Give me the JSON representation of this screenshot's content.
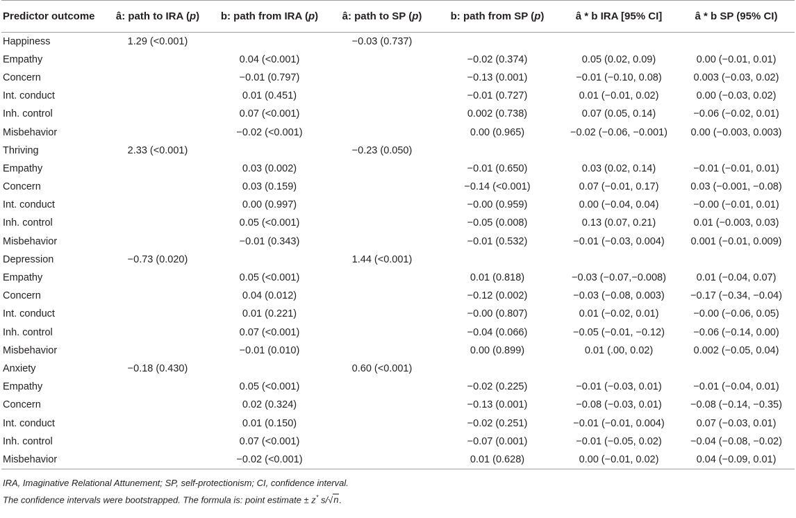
{
  "table": {
    "headers": [
      "Predictor outcome",
      "â: path to IRA (p)",
      "b: path from IRA (p)",
      "â: path to SP (p)",
      "b: path from SP (p)",
      "â * b IRA [95% CI]",
      "â * b SP (95% CI)"
    ],
    "header_parts": [
      {
        "pre": "Predictor outcome",
        "ital": "",
        "post": ""
      },
      {
        "pre": "â: path to IRA (",
        "ital": "p",
        "post": ")"
      },
      {
        "pre": "b: path from IRA (",
        "ital": "p",
        "post": ")"
      },
      {
        "pre": "â: path to SP (",
        "ital": "p",
        "post": ")"
      },
      {
        "pre": "b: path from SP (",
        "ital": "p",
        "post": ")"
      },
      {
        "pre": "â * b IRA [95% CI]",
        "ital": "",
        "post": ""
      },
      {
        "pre": "â * b SP (95% CI)",
        "ital": "",
        "post": ""
      }
    ],
    "rows": [
      [
        "Happiness",
        "1.29 (<0.001)",
        "",
        "−0.03 (0.737)",
        "",
        "",
        ""
      ],
      [
        "Empathy",
        "",
        "0.04 (<0.001)",
        "",
        "−0.02 (0.374)",
        "0.05 (0.02, 0.09)",
        "0.00 (−0.01, 0.01)"
      ],
      [
        "Concern",
        "",
        "−0.01 (0.797)",
        "",
        "−0.13 (0.001)",
        "−0.01 (−0.10, 0.08)",
        "0.003 (−0.03, 0.02)"
      ],
      [
        "Int. conduct",
        "",
        "0.01 (0.451)",
        "",
        "−0.01 (0.727)",
        "0.01 (−0.01, 0.02)",
        "0.00 (−0.03, 0.02)"
      ],
      [
        "Inh. control",
        "",
        "0.07 (<0.001)",
        "",
        "0.002 (0.738)",
        "0.07 (0.05, 0.14)",
        "−0.06 (−0.02, 0.01)"
      ],
      [
        "Misbehavior",
        "",
        "−0.02 (<0.001)",
        "",
        "0.00 (0.965)",
        "−0.02 (−0.06, −0.001)",
        "0.00 (−0.003, 0.003)"
      ],
      [
        "Thriving",
        "2.33 (<0.001)",
        "",
        "−0.23 (0.050)",
        "",
        "",
        ""
      ],
      [
        "Empathy",
        "",
        "0.03 (0.002)",
        "",
        "−0.01 (0.650)",
        "0.03 (0.02, 0.14)",
        "−0.01 (−0.01, 0.01)"
      ],
      [
        "Concern",
        "",
        "0.03 (0.159)",
        "",
        "−0.14 (<0.001)",
        "0.07 (−0.01, 0.17)",
        "0.03 (−0.001, −0.08)"
      ],
      [
        "Int. conduct",
        "",
        "0.00 (0.997)",
        "",
        "−0.00 (0.959)",
        "0.00 (−0.04, 0.04)",
        "−0.00 (−0.01, 0.01)"
      ],
      [
        "Inh. control",
        "",
        "0.05 (<0.001)",
        "",
        "−0.05 (0.008)",
        "0.13 (0.07, 0.21)",
        "0.01 (−0.003, 0.03)"
      ],
      [
        "Misbehavior",
        "",
        "−0.01 (0.343)",
        "",
        "−0.01 (0.532)",
        "−0.01 (−0.03, 0.004)",
        "0.001 (−0.01, 0.009)"
      ],
      [
        "Depression",
        "−0.73 (0.020)",
        "",
        "1.44 (<0.001)",
        "",
        "",
        ""
      ],
      [
        "Empathy",
        "",
        "0.05 (<0.001)",
        "",
        "0.01 (0.818)",
        "−0.03 (−0.07,−0.008)",
        "0.01 (−0.04, 0.07)"
      ],
      [
        "Concern",
        "",
        "0.04 (0.012)",
        "",
        "−0.12 (0.002)",
        "−0.03 (−0.08, 0.003)",
        "−0.17 (−0.34, −0.04)"
      ],
      [
        "Int. conduct",
        "",
        "0.01 (0.221)",
        "",
        "−0.00 (0.807)",
        "0.01 (−0.02, 0.01)",
        "−0.00 (−0.06, 0.05)"
      ],
      [
        "Inh. control",
        "",
        "0.07 (<0.001)",
        "",
        "−0.04 (0.066)",
        "−0.05 (−0.01, −0.12)",
        "−0.06 (−0.14, 0.00)"
      ],
      [
        "Misbehavior",
        "",
        "−0.01 (0.010)",
        "",
        "0.00 (0.899)",
        "0.01 (.00, 0.02)",
        "0.002 (−0.05, 0.04)"
      ],
      [
        "Anxiety",
        "−0.18 (0.430)",
        "",
        "0.60 (<0.001)",
        "",
        "",
        ""
      ],
      [
        "Empathy",
        "",
        "0.05 (<0.001)",
        "",
        "−0.02 (0.225)",
        "−0.01 (−0.03, 0.01)",
        "−0.01 (−0.04, 0.01)"
      ],
      [
        "Concern",
        "",
        "0.02 (0.324)",
        "",
        "−0.13 (0.001)",
        "−0.08 (−0.03, 0.01)",
        "−0.08 (−0.14, −0.35)"
      ],
      [
        "Int. conduct",
        "",
        "0.01 (0.150)",
        "",
        "−0.02 (0.251)",
        "−0.01 (−0.01, 0.004)",
        "0.07 (−0.03, 0.01)"
      ],
      [
        "Inh. control",
        "",
        "0.07 (<0.001)",
        "",
        "−0.07 (0.001)",
        "−0.01 (−0.05, 0.02)",
        "−0.04 (−0.08, −0.02)"
      ],
      [
        "Misbehavior",
        "",
        "−0.02 (<0.001)",
        "",
        "0.01 (0.628)",
        "0.00 (−0.01, 0.02)",
        "0.04 (−0.09, 0.01)"
      ]
    ]
  },
  "notes": {
    "line1": "IRA, Imaginative Relational Attunement; SP, self-protectionism; CI, confidence interval.",
    "line2_prefix": "The confidence intervals were bootstrapped. The formula is: point estimate ± z",
    "line2_sup": "*",
    "line2_mid": " s/",
    "line2_sqrt_symbol": "√",
    "line2_n": "n",
    "line2_end": "."
  }
}
